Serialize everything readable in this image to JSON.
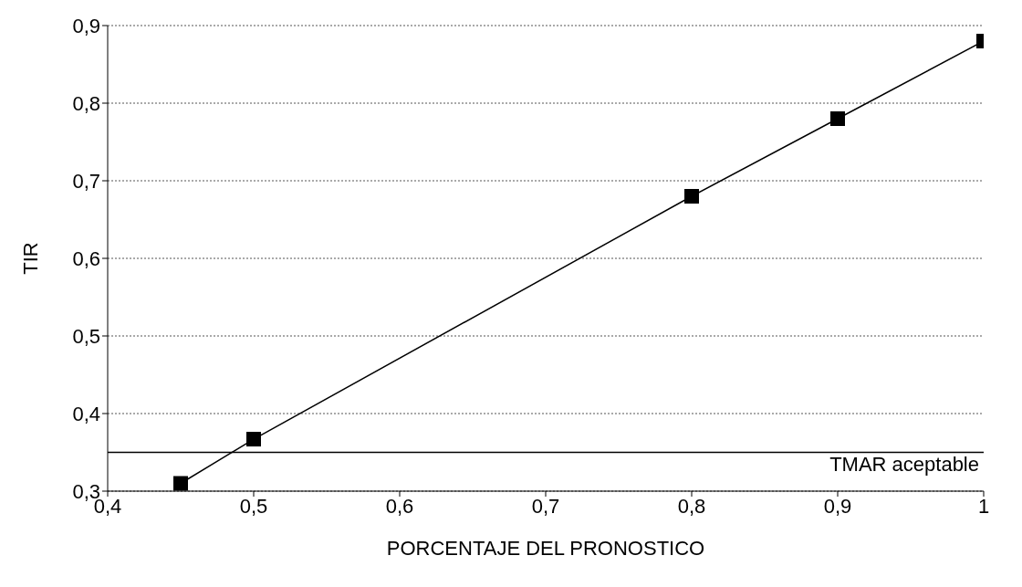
{
  "chart_data": {
    "type": "line",
    "xlabel": "PORCENTAJE DEL PRONOSTICO",
    "ylabel": "TIR",
    "x": [
      0.45,
      0.5,
      0.8,
      0.9,
      1.0
    ],
    "series": [
      {
        "color": "#000000",
        "values": [
          0.31,
          0.367,
          0.68,
          0.78,
          0.88
        ]
      }
    ],
    "xlim": [
      0.4,
      1.0
    ],
    "xticks": [
      {
        "value": 0.4,
        "label": "0,4"
      },
      {
        "value": 0.5,
        "label": "0,5"
      },
      {
        "value": 0.6,
        "label": "0,6"
      },
      {
        "value": 0.7,
        "label": "0,7"
      },
      {
        "value": 0.8,
        "label": "0,8"
      },
      {
        "value": 0.9,
        "label": "0,9"
      },
      {
        "value": 1.0,
        "label": "1"
      }
    ],
    "ylim": [
      0.3,
      0.9
    ],
    "yticks": [
      {
        "value": 0.3,
        "label": "0,3"
      },
      {
        "value": 0.4,
        "label": "0,4"
      },
      {
        "value": 0.5,
        "label": "0,5"
      },
      {
        "value": 0.6,
        "label": "0,6"
      },
      {
        "value": 0.7,
        "label": "0,7"
      },
      {
        "value": 0.8,
        "label": "0,8"
      },
      {
        "value": 0.9,
        "label": "0,9"
      }
    ],
    "ref_lines": [
      {
        "axis": "y",
        "value": 0.35,
        "label": "TMAR  aceptable",
        "color": "#000000"
      }
    ],
    "grid": "y",
    "marker": "square",
    "line_style": "solid"
  }
}
